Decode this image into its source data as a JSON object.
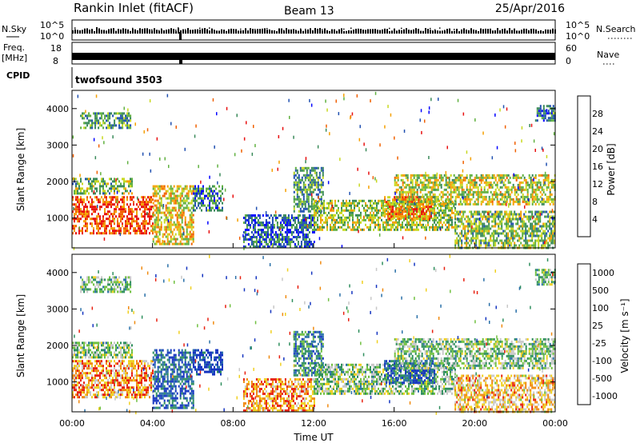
{
  "header": {
    "station": "Rankin Inlet (fitACF)",
    "beam": "Beam 13",
    "date": "25/Apr/2016"
  },
  "status_panels": {
    "nsky_label": "N.Sky",
    "nsky_ticks": [
      "10^5",
      "10^0"
    ],
    "nsearch_label": "N.Search",
    "nsearch_ticks": [
      "10^5",
      "10^0"
    ],
    "freq_label": "Freq.",
    "freq_unit": "[MHz]",
    "freq_ticks": [
      "18",
      "8"
    ],
    "nave_label": "Nave",
    "nave_ticks": [
      "60",
      "0"
    ],
    "cpid_label": "CPID",
    "cpid_value": "twofsound 3503"
  },
  "chart_data": [
    {
      "type": "heatmap",
      "name": "power",
      "ylabel": "Slant Range [km]",
      "yticks": [
        "4000",
        "3000",
        "2000",
        "1000"
      ],
      "ylim": [
        180,
        4500
      ],
      "xlim": [
        0,
        24
      ],
      "colorbar_label": "Power [dB]",
      "colorbar_ticks": [
        "28",
        "24",
        "20",
        "16",
        "12",
        "8",
        "4"
      ],
      "colorscale": [
        "#0000ff",
        "#2050b0",
        "#3a8a5a",
        "#60b040",
        "#c8d820",
        "#f5a000",
        "#f06000",
        "#e81010"
      ],
      "regions": [
        {
          "x0": 0.0,
          "x1": 4.0,
          "r0": 600,
          "r1": 1600,
          "level": 0.85
        },
        {
          "x0": 0.0,
          "x1": 3.0,
          "r0": 1700,
          "r1": 2100,
          "level": 0.45
        },
        {
          "x0": 0.4,
          "x1": 2.9,
          "r0": 3450,
          "r1": 3900,
          "level": 0.35
        },
        {
          "x0": 4.0,
          "x1": 6.0,
          "r0": 300,
          "r1": 1900,
          "level": 0.6
        },
        {
          "x0": 6.0,
          "x1": 7.5,
          "r0": 1200,
          "r1": 1900,
          "level": 0.3
        },
        {
          "x0": 8.5,
          "x1": 12.0,
          "r0": 200,
          "r1": 1100,
          "level": 0.2
        },
        {
          "x0": 11.0,
          "x1": 12.5,
          "r0": 1200,
          "r1": 2400,
          "level": 0.35
        },
        {
          "x0": 12.0,
          "x1": 19.0,
          "r0": 700,
          "r1": 1500,
          "level": 0.5
        },
        {
          "x0": 15.5,
          "x1": 18.0,
          "r0": 1000,
          "r1": 1600,
          "level": 0.75
        },
        {
          "x0": 16.0,
          "x1": 24.0,
          "r0": 1400,
          "r1": 2200,
          "level": 0.55
        },
        {
          "x0": 19.0,
          "x1": 24.0,
          "r0": 200,
          "r1": 1200,
          "level": 0.45
        },
        {
          "x0": 23.0,
          "x1": 24.0,
          "r0": 3700,
          "r1": 4100,
          "level": 0.3
        }
      ]
    },
    {
      "type": "heatmap",
      "name": "velocity",
      "ylabel": "Slant Range [km]",
      "yticks": [
        "4000",
        "3000",
        "2000",
        "1000"
      ],
      "ylim": [
        180,
        4500
      ],
      "xlim": [
        0,
        24
      ],
      "xticks": [
        "00:00",
        "04:00",
        "08:00",
        "12:00",
        "16:00",
        "20:00",
        "00:00"
      ],
      "xlabel": "Time UT",
      "colorbar_label": "Velocity [m s⁻¹]",
      "colorbar_ticks": [
        "1000",
        "500",
        "100",
        "25",
        "-25",
        "-100",
        "-500",
        "-1000"
      ],
      "colorscale": [
        "#1535c0",
        "#2a70a8",
        "#2f8f5e",
        "#70c040",
        "#c8c8c8",
        "#f0d020",
        "#f08a10",
        "#e82010"
      ],
      "regions": [
        {
          "x0": 0.0,
          "x1": 4.0,
          "r0": 600,
          "r1": 1600,
          "level": 0.78
        },
        {
          "x0": 0.0,
          "x1": 3.0,
          "r0": 1700,
          "r1": 2100,
          "level": 0.45
        },
        {
          "x0": 0.4,
          "x1": 2.9,
          "r0": 3450,
          "r1": 3900,
          "level": 0.42
        },
        {
          "x0": 4.0,
          "x1": 6.0,
          "r0": 300,
          "r1": 1900,
          "level": 0.15
        },
        {
          "x0": 6.0,
          "x1": 7.5,
          "r0": 1200,
          "r1": 1900,
          "level": 0.05
        },
        {
          "x0": 8.5,
          "x1": 12.0,
          "r0": 200,
          "r1": 1100,
          "level": 0.8
        },
        {
          "x0": 11.0,
          "x1": 12.5,
          "r0": 1200,
          "r1": 2400,
          "level": 0.25
        },
        {
          "x0": 12.0,
          "x1": 19.0,
          "r0": 700,
          "r1": 1500,
          "level": 0.45
        },
        {
          "x0": 15.5,
          "x1": 18.0,
          "r0": 1000,
          "r1": 1600,
          "level": 0.1
        },
        {
          "x0": 16.0,
          "x1": 24.0,
          "r0": 1400,
          "r1": 2200,
          "level": 0.45
        },
        {
          "x0": 19.0,
          "x1": 24.0,
          "r0": 200,
          "r1": 1200,
          "level": 0.7
        },
        {
          "x0": 23.0,
          "x1": 24.0,
          "r0": 3700,
          "r1": 4100,
          "level": 0.42
        }
      ]
    }
  ]
}
